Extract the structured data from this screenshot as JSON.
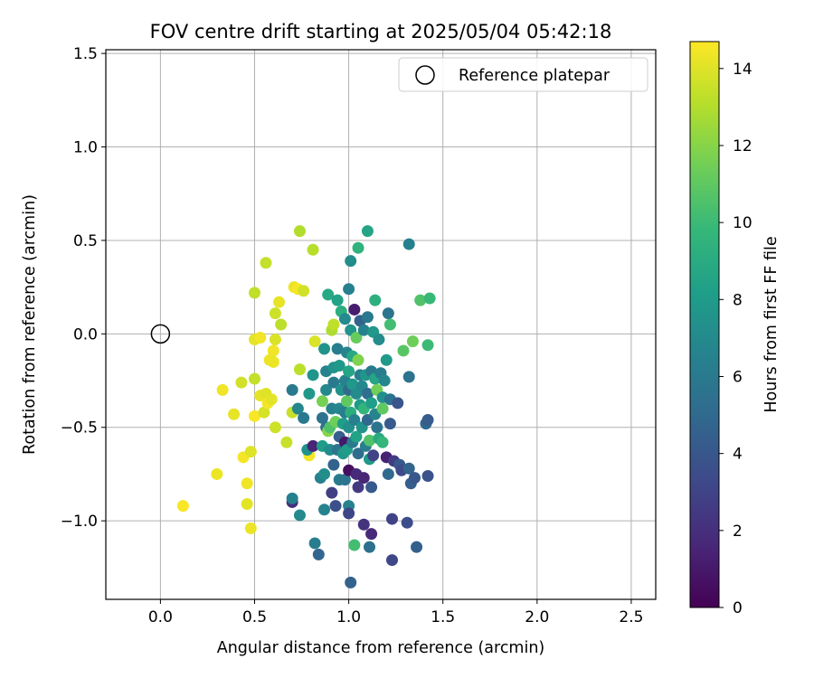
{
  "chart_data": {
    "type": "scatter",
    "title": "FOV centre drift starting at 2025/05/04 05:42:18",
    "xlabel": "Angular distance from reference (arcmin)",
    "ylabel": "Rotation from reference (arcmin)",
    "xlim": [
      -0.29,
      2.63
    ],
    "ylim": [
      -1.42,
      1.52
    ],
    "xticks": [
      0.0,
      0.5,
      1.0,
      1.5,
      2.0,
      2.5
    ],
    "xtick_labels": [
      "0.0",
      "0.5",
      "1.0",
      "1.5",
      "2.0",
      "2.5"
    ],
    "yticks": [
      -1.0,
      -0.5,
      0.0,
      0.5,
      1.0,
      1.5
    ],
    "ytick_labels": [
      "−1.0",
      "−0.5",
      "0.0",
      "0.5",
      "1.0",
      "1.5"
    ],
    "grid": true,
    "legend": {
      "placement": "upper right",
      "entries": [
        "Reference platepar"
      ]
    },
    "reference_point": {
      "x": 0.0,
      "y": 0.0,
      "label": "Reference platepar"
    },
    "colorbar": {
      "label": "Hours from first FF file",
      "colormap": "viridis",
      "range": [
        0,
        14.7
      ],
      "ticks": [
        0,
        2,
        4,
        6,
        8,
        10,
        12,
        14
      ],
      "tick_labels": [
        "0",
        "2",
        "4",
        "6",
        "8",
        "10",
        "12",
        "14"
      ],
      "colors": [
        "#440154",
        "#482878",
        "#3e4989",
        "#31688e",
        "#26828e",
        "#1f9e89",
        "#35b779",
        "#6ece58",
        "#b5de2b",
        "#fde725"
      ]
    },
    "points": [
      {
        "x": 0.12,
        "y": -0.92,
        "h": 14.6
      },
      {
        "x": 0.3,
        "y": -0.75,
        "h": 14.3
      },
      {
        "x": 0.33,
        "y": -0.3,
        "h": 14.4
      },
      {
        "x": 0.39,
        "y": -0.43,
        "h": 14.2
      },
      {
        "x": 0.43,
        "y": -0.26,
        "h": 13.7
      },
      {
        "x": 0.44,
        "y": -0.66,
        "h": 14.5
      },
      {
        "x": 0.46,
        "y": -0.91,
        "h": 14.1
      },
      {
        "x": 0.46,
        "y": -0.8,
        "h": 14.4
      },
      {
        "x": 0.48,
        "y": -0.63,
        "h": 14.0
      },
      {
        "x": 0.48,
        "y": -1.04,
        "h": 14.3
      },
      {
        "x": 0.5,
        "y": -0.24,
        "h": 13.4
      },
      {
        "x": 0.5,
        "y": -0.44,
        "h": 14.6
      },
      {
        "x": 0.5,
        "y": -0.03,
        "h": 14.1
      },
      {
        "x": 0.5,
        "y": 0.22,
        "h": 13.3
      },
      {
        "x": 0.53,
        "y": -0.02,
        "h": 14.4
      },
      {
        "x": 0.53,
        "y": -0.33,
        "h": 14.2
      },
      {
        "x": 0.55,
        "y": -0.42,
        "h": 13.8
      },
      {
        "x": 0.56,
        "y": -0.32,
        "h": 14.0
      },
      {
        "x": 0.57,
        "y": -0.37,
        "h": 14.5
      },
      {
        "x": 0.58,
        "y": -0.14,
        "h": 14.3
      },
      {
        "x": 0.59,
        "y": -0.35,
        "h": 14.1
      },
      {
        "x": 0.6,
        "y": -0.09,
        "h": 14.4
      },
      {
        "x": 0.6,
        "y": -0.15,
        "h": 14.3
      },
      {
        "x": 0.61,
        "y": -0.03,
        "h": 13.9
      },
      {
        "x": 0.61,
        "y": -0.5,
        "h": 13.6
      },
      {
        "x": 0.56,
        "y": 0.38,
        "h": 13.4
      },
      {
        "x": 0.61,
        "y": 0.11,
        "h": 13.6
      },
      {
        "x": 0.63,
        "y": 0.17,
        "h": 14.2
      },
      {
        "x": 0.64,
        "y": 0.05,
        "h": 13.2
      },
      {
        "x": 0.67,
        "y": -0.58,
        "h": 13.5
      },
      {
        "x": 0.7,
        "y": -0.42,
        "h": 13.5
      },
      {
        "x": 0.71,
        "y": 0.25,
        "h": 14.3
      },
      {
        "x": 0.73,
        "y": 0.24,
        "h": 14.5
      },
      {
        "x": 0.74,
        "y": 0.55,
        "h": 13.0
      },
      {
        "x": 0.74,
        "y": -0.19,
        "h": 13.2
      },
      {
        "x": 0.76,
        "y": 0.23,
        "h": 13.7
      },
      {
        "x": 0.79,
        "y": -0.65,
        "h": 14.5
      },
      {
        "x": 0.81,
        "y": 0.45,
        "h": 13.1
      },
      {
        "x": 0.82,
        "y": -0.04,
        "h": 13.9
      },
      {
        "x": 0.7,
        "y": -0.9,
        "h": 2.1
      },
      {
        "x": 0.7,
        "y": -0.88,
        "h": 6.5
      },
      {
        "x": 0.7,
        "y": -0.3,
        "h": 6.0
      },
      {
        "x": 0.73,
        "y": -0.4,
        "h": 6.8
      },
      {
        "x": 0.74,
        "y": -0.97,
        "h": 7.0
      },
      {
        "x": 0.76,
        "y": -0.45,
        "h": 5.9
      },
      {
        "x": 0.78,
        "y": -0.62,
        "h": 7.5
      },
      {
        "x": 0.79,
        "y": -0.32,
        "h": 7.8
      },
      {
        "x": 0.81,
        "y": -0.6,
        "h": 1.5
      },
      {
        "x": 0.81,
        "y": -0.22,
        "h": 7.6
      },
      {
        "x": 0.82,
        "y": -1.12,
        "h": 6.2
      },
      {
        "x": 0.84,
        "y": -1.18,
        "h": 4.8
      },
      {
        "x": 0.85,
        "y": -0.77,
        "h": 6.4
      },
      {
        "x": 0.86,
        "y": -0.45,
        "h": 5.5
      },
      {
        "x": 0.86,
        "y": -0.6,
        "h": 8.1
      },
      {
        "x": 0.86,
        "y": -0.36,
        "h": 11.6
      },
      {
        "x": 0.87,
        "y": -0.94,
        "h": 6.6
      },
      {
        "x": 0.87,
        "y": -0.75,
        "h": 7.2
      },
      {
        "x": 0.87,
        "y": -0.08,
        "h": 7.5
      },
      {
        "x": 0.88,
        "y": -0.2,
        "h": 6.6
      },
      {
        "x": 0.88,
        "y": -0.5,
        "h": 5.4
      },
      {
        "x": 0.88,
        "y": -0.3,
        "h": 6.9
      },
      {
        "x": 0.89,
        "y": 0.21,
        "h": 8.8
      },
      {
        "x": 0.89,
        "y": -0.52,
        "h": 12.0
      },
      {
        "x": 0.9,
        "y": -0.62,
        "h": 7.1
      },
      {
        "x": 0.9,
        "y": -0.5,
        "h": 10.5
      },
      {
        "x": 0.91,
        "y": -0.85,
        "h": 2.8
      },
      {
        "x": 0.91,
        "y": 0.02,
        "h": 12.9
      },
      {
        "x": 0.91,
        "y": -0.4,
        "h": 6.5
      },
      {
        "x": 0.92,
        "y": -0.18,
        "h": 7.5
      },
      {
        "x": 0.92,
        "y": 0.05,
        "h": 13.3
      },
      {
        "x": 0.92,
        "y": -0.7,
        "h": 4.6
      },
      {
        "x": 0.92,
        "y": -0.26,
        "h": 6.0
      },
      {
        "x": 0.93,
        "y": -0.92,
        "h": 3.6
      },
      {
        "x": 0.93,
        "y": -0.47,
        "h": 11.4
      },
      {
        "x": 0.94,
        "y": 0.18,
        "h": 8.4
      },
      {
        "x": 0.94,
        "y": -0.08,
        "h": 6.3
      },
      {
        "x": 0.94,
        "y": -0.62,
        "h": 5.8
      },
      {
        "x": 0.95,
        "y": -0.4,
        "h": 6.8
      },
      {
        "x": 0.95,
        "y": -0.17,
        "h": 7.9
      },
      {
        "x": 0.95,
        "y": -0.55,
        "h": 4.4
      },
      {
        "x": 0.95,
        "y": -0.78,
        "h": 6.1
      },
      {
        "x": 0.96,
        "y": -0.3,
        "h": 7.4
      },
      {
        "x": 0.96,
        "y": 0.12,
        "h": 9.2
      },
      {
        "x": 0.97,
        "y": -0.64,
        "h": 7.7
      },
      {
        "x": 0.97,
        "y": -0.48,
        "h": 8.2
      },
      {
        "x": 0.98,
        "y": -0.25,
        "h": 6.6
      },
      {
        "x": 0.98,
        "y": -0.58,
        "h": 1.0
      },
      {
        "x": 0.98,
        "y": -0.42,
        "h": 6.2
      },
      {
        "x": 0.98,
        "y": -0.78,
        "h": 5.7
      },
      {
        "x": 0.98,
        "y": 0.08,
        "h": 7.0
      },
      {
        "x": 0.99,
        "y": -0.36,
        "h": 11.0
      },
      {
        "x": 0.99,
        "y": -0.1,
        "h": 6.7
      },
      {
        "x": 0.99,
        "y": -0.62,
        "h": 8.1
      },
      {
        "x": 1.0,
        "y": -0.5,
        "h": 7.3
      },
      {
        "x": 1.0,
        "y": -0.2,
        "h": 8.6
      },
      {
        "x": 1.0,
        "y": -0.73,
        "h": 0.6
      },
      {
        "x": 1.0,
        "y": 0.24,
        "h": 6.4
      },
      {
        "x": 1.0,
        "y": -0.3,
        "h": 5.1
      },
      {
        "x": 1.0,
        "y": -0.92,
        "h": 6.6
      },
      {
        "x": 1.0,
        "y": -0.96,
        "h": 3.1
      },
      {
        "x": 1.01,
        "y": -0.42,
        "h": 9.2
      },
      {
        "x": 1.01,
        "y": 0.02,
        "h": 7.6
      },
      {
        "x": 1.01,
        "y": 0.39,
        "h": 7.2
      },
      {
        "x": 1.01,
        "y": -1.33,
        "h": 4.6
      },
      {
        "x": 1.02,
        "y": -0.58,
        "h": 6.0
      },
      {
        "x": 1.02,
        "y": -0.27,
        "h": 7.9
      },
      {
        "x": 1.02,
        "y": -0.12,
        "h": 8.8
      },
      {
        "x": 1.03,
        "y": 0.13,
        "h": 1.2
      },
      {
        "x": 1.03,
        "y": -0.46,
        "h": 6.4
      },
      {
        "x": 1.03,
        "y": -1.13,
        "h": 10.2
      },
      {
        "x": 1.04,
        "y": -0.75,
        "h": 1.8
      },
      {
        "x": 1.04,
        "y": -0.32,
        "h": 7.1
      },
      {
        "x": 1.04,
        "y": -0.55,
        "h": 8.5
      },
      {
        "x": 1.04,
        "y": -0.02,
        "h": 11.2
      },
      {
        "x": 1.05,
        "y": -0.82,
        "h": 2.5
      },
      {
        "x": 1.05,
        "y": 0.46,
        "h": 9.4
      },
      {
        "x": 1.05,
        "y": -0.14,
        "h": 11.8
      },
      {
        "x": 1.05,
        "y": -0.64,
        "h": 5.2
      },
      {
        "x": 1.06,
        "y": -0.38,
        "h": 8.0
      },
      {
        "x": 1.06,
        "y": -0.22,
        "h": 6.3
      },
      {
        "x": 1.06,
        "y": 0.07,
        "h": 4.6
      },
      {
        "x": 1.07,
        "y": -0.5,
        "h": 7.6
      },
      {
        "x": 1.07,
        "y": -0.28,
        "h": 6.9
      },
      {
        "x": 1.08,
        "y": -1.02,
        "h": 2.2
      },
      {
        "x": 1.08,
        "y": -0.77,
        "h": 1.6
      },
      {
        "x": 1.08,
        "y": 0.02,
        "h": 6.6
      },
      {
        "x": 1.08,
        "y": -0.4,
        "h": 9.6
      },
      {
        "x": 1.09,
        "y": -0.6,
        "h": 6.3
      },
      {
        "x": 1.09,
        "y": -0.22,
        "h": 7.7
      },
      {
        "x": 1.1,
        "y": 0.55,
        "h": 8.6
      },
      {
        "x": 1.1,
        "y": -0.46,
        "h": 4.9
      },
      {
        "x": 1.1,
        "y": -0.32,
        "h": 5.3
      },
      {
        "x": 1.1,
        "y": 0.09,
        "h": 5.9
      },
      {
        "x": 1.11,
        "y": -0.67,
        "h": 7.8
      },
      {
        "x": 1.11,
        "y": -0.57,
        "h": 10.6
      },
      {
        "x": 1.11,
        "y": -1.14,
        "h": 5.4
      },
      {
        "x": 1.12,
        "y": -1.07,
        "h": 1.7
      },
      {
        "x": 1.12,
        "y": -0.82,
        "h": 4.1
      },
      {
        "x": 1.12,
        "y": -0.37,
        "h": 8.2
      },
      {
        "x": 1.12,
        "y": -0.2,
        "h": 6.0
      },
      {
        "x": 1.13,
        "y": -0.65,
        "h": 3.0
      },
      {
        "x": 1.13,
        "y": 0.01,
        "h": 7.8
      },
      {
        "x": 1.14,
        "y": 0.18,
        "h": 9.3
      },
      {
        "x": 1.14,
        "y": -0.43,
        "h": 6.7
      },
      {
        "x": 1.14,
        "y": -0.24,
        "h": 8.6
      },
      {
        "x": 1.15,
        "y": -0.3,
        "h": 11.5
      },
      {
        "x": 1.15,
        "y": -0.5,
        "h": 5.6
      },
      {
        "x": 1.16,
        "y": -0.03,
        "h": 7.1
      },
      {
        "x": 1.16,
        "y": -0.56,
        "h": 8.9
      },
      {
        "x": 1.17,
        "y": -0.21,
        "h": 6.2
      },
      {
        "x": 1.18,
        "y": -0.34,
        "h": 7.3
      },
      {
        "x": 1.18,
        "y": -0.58,
        "h": 9.7
      },
      {
        "x": 1.18,
        "y": -0.4,
        "h": 11.0
      },
      {
        "x": 1.19,
        "y": -0.25,
        "h": 6.8
      },
      {
        "x": 1.2,
        "y": -0.66,
        "h": 1.4
      },
      {
        "x": 1.2,
        "y": -0.14,
        "h": 8.0
      },
      {
        "x": 1.21,
        "y": 0.11,
        "h": 5.7
      },
      {
        "x": 1.21,
        "y": -0.75,
        "h": 5.0
      },
      {
        "x": 1.22,
        "y": 0.05,
        "h": 10.2
      },
      {
        "x": 1.22,
        "y": -0.35,
        "h": 5.5
      },
      {
        "x": 1.22,
        "y": -0.48,
        "h": 4.2
      },
      {
        "x": 1.23,
        "y": -0.99,
        "h": 3.0
      },
      {
        "x": 1.23,
        "y": -1.21,
        "h": 3.2
      },
      {
        "x": 1.24,
        "y": -0.68,
        "h": 2.6
      },
      {
        "x": 1.26,
        "y": -0.37,
        "h": 3.9
      },
      {
        "x": 1.27,
        "y": -0.7,
        "h": 4.1
      },
      {
        "x": 1.28,
        "y": -0.73,
        "h": 3.3
      },
      {
        "x": 1.29,
        "y": -0.09,
        "h": 10.8
      },
      {
        "x": 1.31,
        "y": -1.01,
        "h": 3.5
      },
      {
        "x": 1.32,
        "y": 0.48,
        "h": 6.5
      },
      {
        "x": 1.32,
        "y": -0.23,
        "h": 5.5
      },
      {
        "x": 1.32,
        "y": -0.72,
        "h": 4.7
      },
      {
        "x": 1.33,
        "y": -0.8,
        "h": 4.4
      },
      {
        "x": 1.34,
        "y": -0.04,
        "h": 11.4
      },
      {
        "x": 1.35,
        "y": -0.77,
        "h": 4.0
      },
      {
        "x": 1.36,
        "y": -1.14,
        "h": 4.5
      },
      {
        "x": 1.38,
        "y": 0.18,
        "h": 10.6
      },
      {
        "x": 1.41,
        "y": -0.48,
        "h": 4.9
      },
      {
        "x": 1.42,
        "y": -0.06,
        "h": 10.0
      },
      {
        "x": 1.42,
        "y": -0.46,
        "h": 4.3
      },
      {
        "x": 1.42,
        "y": -0.76,
        "h": 3.8
      },
      {
        "x": 1.43,
        "y": 0.19,
        "h": 9.9
      }
    ]
  }
}
